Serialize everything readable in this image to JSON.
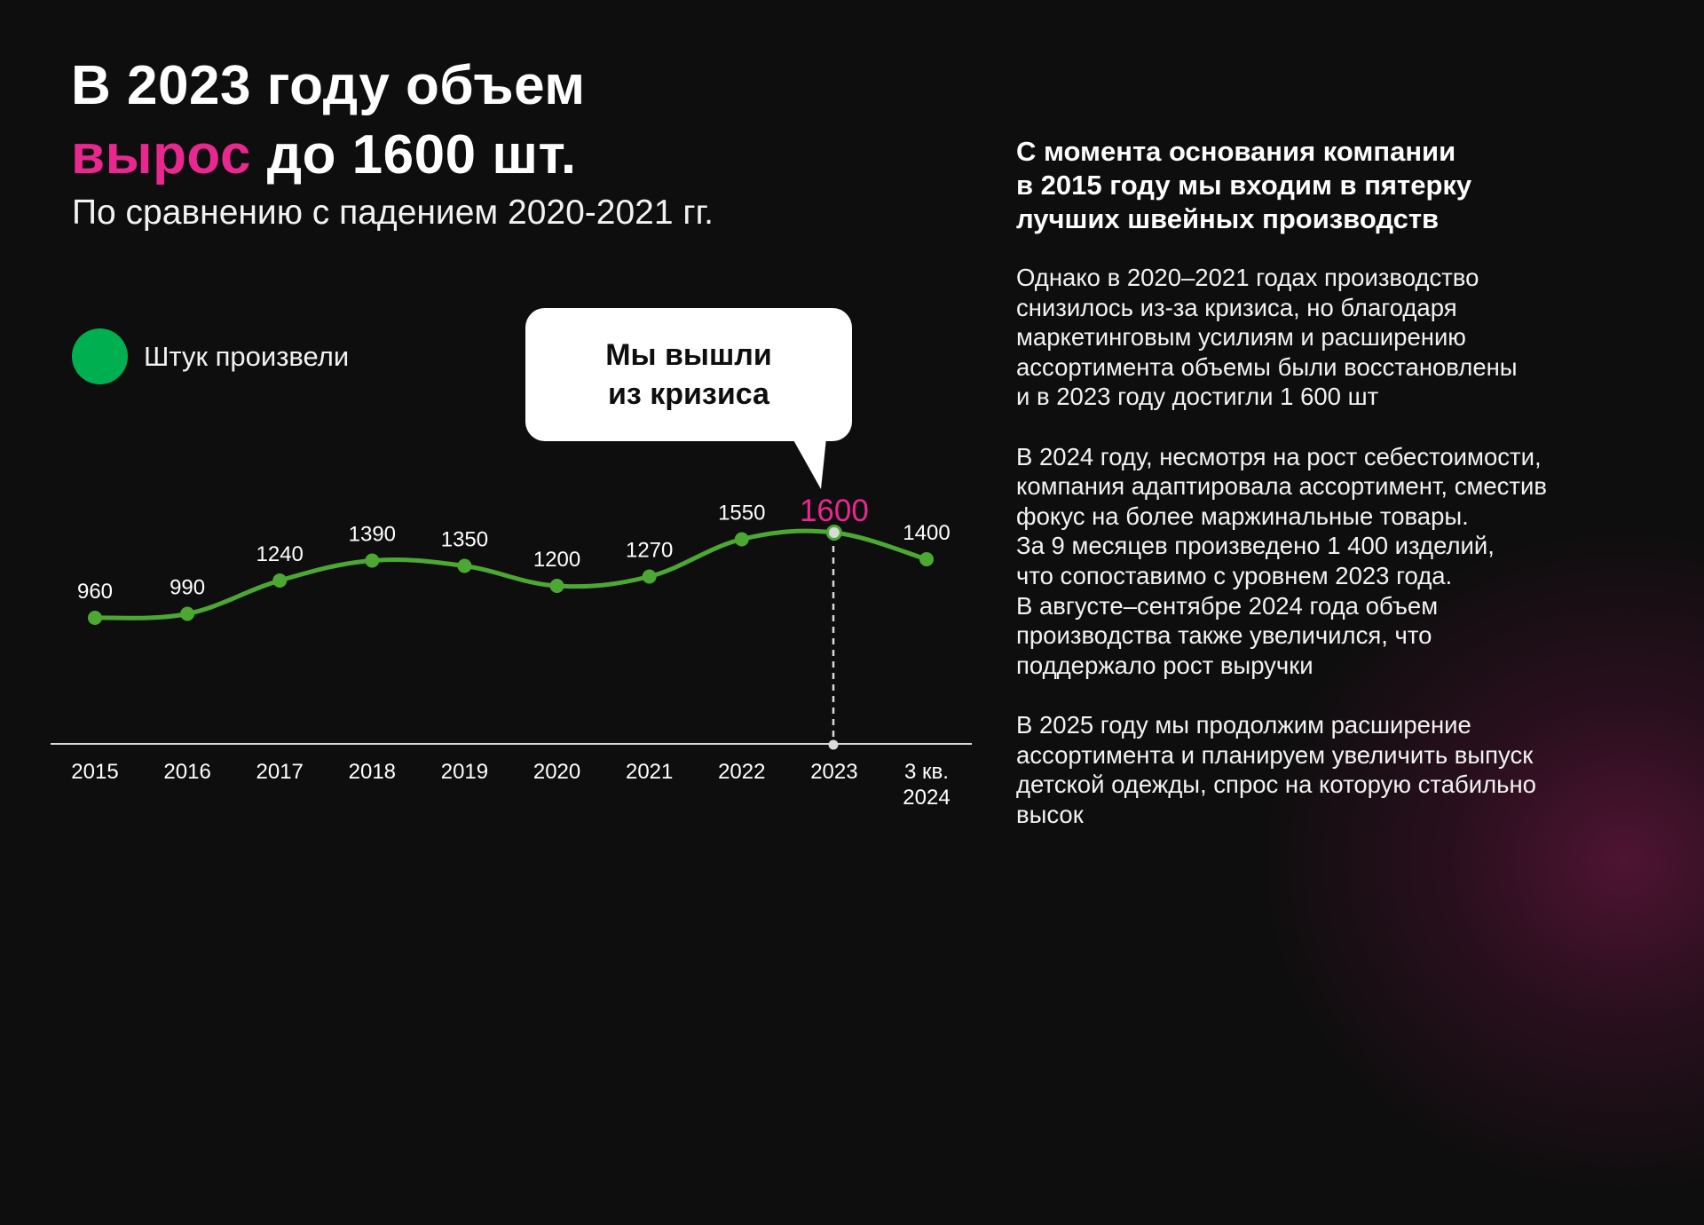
{
  "title": {
    "line1": "В 2023 году объем",
    "accent": "вырос",
    "line2_rest": " до 1600 шт.",
    "subtitle": "По сравнению с падением 2020-2021 гг."
  },
  "legend": {
    "label": "Штук произвели",
    "color": "#00B050"
  },
  "callout": {
    "line1": "Мы вышли",
    "line2": "из кризиса"
  },
  "colors": {
    "accent": "#E9288F",
    "line": "#4CA833",
    "background": "#0E0E0E",
    "highlight_point": "#D9D9D9"
  },
  "chart_data": {
    "type": "line",
    "title": "В 2023 году объем вырос до 1600 шт.",
    "subtitle": "По сравнению с падением 2020-2021 гг.",
    "xlabel": "",
    "ylabel": "",
    "categories": [
      "2015",
      "2016",
      "2017",
      "2018",
      "2019",
      "2020",
      "2021",
      "2022",
      "2023",
      "3 кв. 2024"
    ],
    "series": [
      {
        "name": "Штук произвели",
        "values": [
          960,
          990,
          1240,
          1390,
          1350,
          1200,
          1270,
          1550,
          1600,
          1400
        ]
      }
    ],
    "highlight": {
      "category": "2023",
      "value": 1600,
      "annotation": "Мы вышли из кризиса"
    },
    "grid": false,
    "legend_position": "top-left",
    "value_labels": [
      "960",
      "990",
      "1240",
      "1390",
      "1350",
      "1200",
      "1270",
      "1550",
      "1600",
      "1400"
    ],
    "x_labels": [
      {
        "line1": "2015",
        "line2": ""
      },
      {
        "line1": "2016",
        "line2": ""
      },
      {
        "line1": "2017",
        "line2": ""
      },
      {
        "line1": "2018",
        "line2": ""
      },
      {
        "line1": "2019",
        "line2": ""
      },
      {
        "line1": "2020",
        "line2": ""
      },
      {
        "line1": "2021",
        "line2": ""
      },
      {
        "line1": "2022",
        "line2": ""
      },
      {
        "line1": "2023",
        "line2": ""
      },
      {
        "line1": "3 кв.",
        "line2": "2024"
      }
    ]
  },
  "right_panel": {
    "heading": "С момента основания компании\nв 2015 году мы входим в пятерку\nлучших швейных производств",
    "paragraphs": [
      "Однако в 2020–2021 годах производство\nснизилось из-за кризиса, но благодаря\nмаркетинговым усилиям и расширению\nассортимента объемы были восстановлены\nи в 2023 году достигли 1 600 шт",
      "В 2024 году, несмотря на рост себестоимости,\nкомпания адаптировала ассортимент, сместив\nфокус на более маржинальные товары.\nЗа 9 месяцев произведено 1 400 изделий,\nчто сопоставимо с уровнем 2023 года.\nВ августе–сентябре 2024 года объем\nпроизводства также увеличился, что\nподдержало рост выручки",
      "В 2025 году мы продолжим расширение\nассортимента и планируем увеличить выпуск\nдетской одежды, спрос на которую стабильно\nвысок"
    ]
  }
}
